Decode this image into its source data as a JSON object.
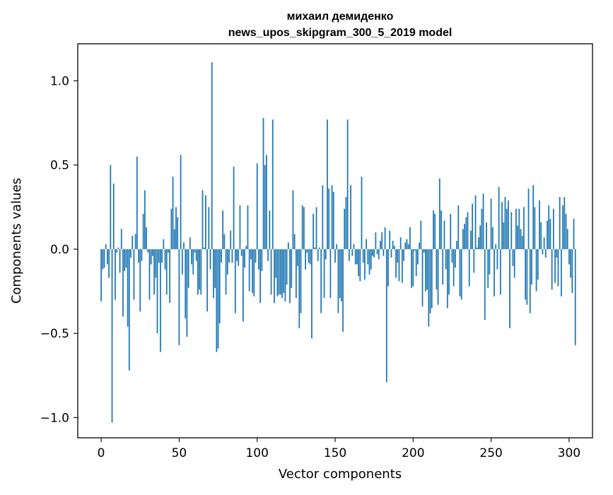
{
  "chart_data": {
    "type": "bar",
    "title": "михаил демиденко",
    "subtitle": "news_upos_skipgram_300_5_2019 model",
    "xlabel": "Vector components",
    "ylabel": "Components values",
    "xlim": [
      -15,
      315
    ],
    "ylim": [
      -1.12,
      1.22
    ],
    "xticks": [
      0,
      50,
      100,
      150,
      200,
      250,
      300
    ],
    "yticks": [
      -1.0,
      -0.5,
      0.0,
      0.5,
      1.0
    ],
    "xtick_labels": [
      "0",
      "50",
      "100",
      "150",
      "200",
      "250",
      "300"
    ],
    "ytick_labels": [
      "−1.0",
      "−0.5",
      "0.0",
      "0.5",
      "1.0"
    ],
    "grid": false,
    "bar_color": "#1f77b4",
    "values": [
      -0.31,
      -0.12,
      -0.11,
      0.03,
      -0.09,
      -0.17,
      0.5,
      -1.03,
      0.39,
      -0.3,
      -0.02,
      0.01,
      -0.14,
      0.12,
      -0.4,
      -0.13,
      -0.11,
      -0.46,
      -0.72,
      -0.05,
      0.08,
      -0.3,
      0.09,
      0.55,
      -0.08,
      -0.37,
      -0.07,
      0.21,
      0.35,
      0.13,
      -0.02,
      -0.3,
      -0.09,
      -0.04,
      -0.27,
      -0.17,
      -0.5,
      -0.08,
      -0.61,
      -0.08,
      0.06,
      -0.12,
      -0.27,
      -0.02,
      -0.32,
      0.24,
      0.43,
      0.12,
      0.25,
      0.19,
      -0.57,
      0.56,
      -0.15,
      0.04,
      -0.41,
      -0.52,
      -0.23,
      0.07,
      -0.09,
      -0.15,
      -0.02,
      -0.07,
      -0.27,
      -0.24,
      -0.27,
      0.35,
      0.01,
      0.32,
      -0.37,
      0.25,
      -0.12,
      1.11,
      -0.29,
      -0.23,
      -0.61,
      -0.59,
      -0.44,
      -0.08,
      0.23,
      0.09,
      -0.27,
      -0.15,
      -0.08,
      0.11,
      -0.08,
      0.49,
      -0.38,
      -0.07,
      -0.1,
      0.26,
      -0.04,
      -0.43,
      -0.11,
      0.02,
      0.26,
      -0.25,
      -0.06,
      -0.26,
      -0.28,
      -0.08,
      0.51,
      -0.12,
      -0.32,
      -0.13,
      0.78,
      0.5,
      0.56,
      -0.07,
      0.23,
      -0.27,
      0.77,
      -0.32,
      -0.17,
      -0.28,
      -0.27,
      -0.27,
      -0.29,
      -0.26,
      -0.31,
      -0.21,
      0.04,
      -0.32,
      -0.23,
      0.35,
      0.09,
      -0.29,
      -0.1,
      -0.47,
      -0.38,
      0.26,
      0.25,
      -0.12,
      -0.02,
      -0.08,
      -0.09,
      -0.53,
      0.21,
      0.01,
      0.25,
      -0.07,
      0.01,
      -0.38,
      0.38,
      -0.29,
      -0.06,
      0.77,
      0.36,
      -0.29,
      0.38,
      0.34,
      -0.08,
      0.03,
      -0.38,
      -0.29,
      -0.31,
      -0.49,
      0.24,
      0.31,
      0.77,
      -0.07,
      0.38,
      -0.04,
      0.03,
      -0.09,
      -0.09,
      -0.16,
      -0.19,
      0.43,
      -0.08,
      -0.18,
      0.06,
      -0.09,
      -0.15,
      -0.12,
      -0.04,
      -0.05,
      0.1,
      -0.03,
      -0.06,
      0.05,
      0.1,
      -0.04,
      0.13,
      -0.79,
      -0.22,
      0.11,
      -0.05,
      0.05,
      0.02,
      -0.17,
      -0.08,
      -0.19,
      0.07,
      -0.2,
      -0.07,
      0.04,
      0.06,
      0.03,
      0.13,
      -0.23,
      -0.22,
      -0.01,
      -0.16,
      -0.09,
      0.04,
      0.17,
      -0.34,
      -0.02,
      -0.25,
      -0.24,
      -0.46,
      -0.38,
      -0.35,
      0.23,
      0.21,
      -0.24,
      -0.33,
      0.42,
      0.23,
      -0.21,
      0.17,
      -0.12,
      -0.35,
      -0.27,
      0.21,
      -0.08,
      -0.22,
      -0.11,
      0.05,
      0.26,
      -0.28,
      -0.3,
      0.12,
      0.15,
      0.19,
      0.22,
      -0.22,
      0.11,
      0.27,
      -0.14,
      0.32,
      0.01,
      0.07,
      0.14,
      0.24,
      0.33,
      -0.42,
      0.16,
      -0.23,
      -0.15,
      0.3,
      0.13,
      -0.28,
      0.03,
      -0.12,
      0.37,
      -0.27,
      0.28,
      0.16,
      0.31,
      0.24,
      0.29,
      -0.47,
      0.22,
      -0.1,
      -0.17,
      0.24,
      0.14,
      0.24,
      0.12,
      0.08,
      0.25,
      -0.3,
      -0.33,
      0.36,
      -0.38,
      -0.21,
      0.38,
      0.25,
      -0.25,
      -0.18,
      0.29,
      0.16,
      -0.03,
      0.07,
      -0.05,
      0.17,
      0.26,
      0.18,
      -0.24,
      0.24,
      -0.2,
      -0.05,
      -0.22,
      0.31,
      -0.28,
      0.26,
      0.31,
      0.21,
      0.12,
      -0.09,
      -0.17,
      -0.26,
      0.18,
      -0.57
    ]
  }
}
